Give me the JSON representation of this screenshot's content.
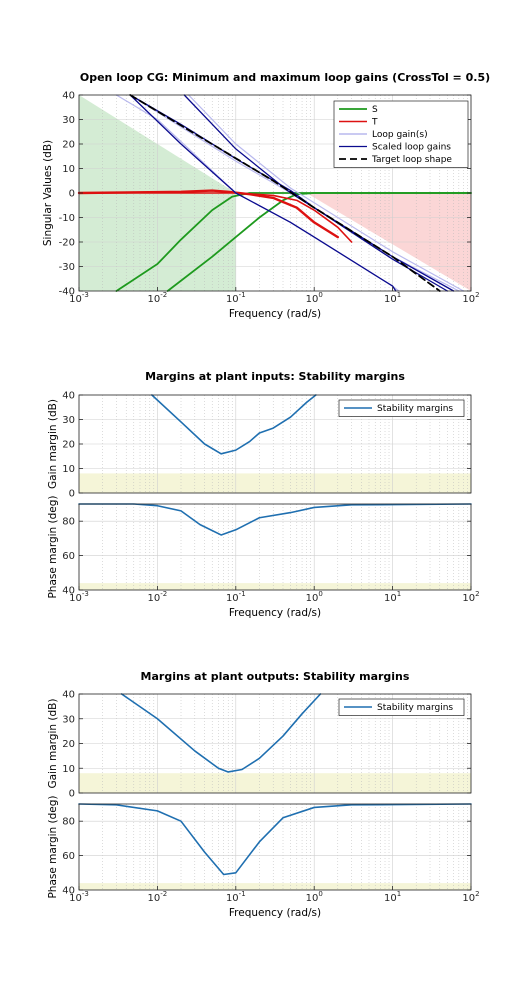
{
  "chart_data": [
    {
      "type": "line",
      "title": "Open loop CG: Minimum and maximum loop gains (CrossTol = 0.5)",
      "xlabel": "Frequency (rad/s)",
      "ylabel": "Singular Values (dB)",
      "xscale": "log",
      "xlim": [
        0.001,
        100
      ],
      "ylim": [
        -40,
        40
      ],
      "x_tick_labels": [
        {
          "base": "10",
          "exp": "-3"
        },
        {
          "base": "10",
          "exp": "-2"
        },
        {
          "base": "10",
          "exp": "-1"
        },
        {
          "base": "10",
          "exp": "0"
        },
        {
          "base": "10",
          "exp": "1"
        },
        {
          "base": "10",
          "exp": "2"
        }
      ],
      "y_ticks": [
        -40,
        -30,
        -20,
        -10,
        0,
        10,
        20,
        30,
        40
      ],
      "grid": true,
      "legend": {
        "placement": "top-right",
        "entries": [
          "S",
          "T",
          "Loop gain(s)",
          "Scaled loop gains",
          "Target loop shape"
        ]
      },
      "shaded_regions": [
        {
          "name": "low-frequency gain bound",
          "color": "#d4ecd4",
          "points": [
            [
              0.001,
              40
            ],
            [
              0.1,
              0
            ],
            [
              0.1,
              -40
            ],
            [
              0.001,
              -40
            ]
          ]
        },
        {
          "name": "high-frequency gain bound",
          "color": "#fbd6d6",
          "points": [
            [
              0.8,
              0
            ],
            [
              100,
              0
            ],
            [
              100,
              -40
            ]
          ]
        }
      ],
      "series": [
        {
          "name": "S",
          "color": "#1e9a1e",
          "width": 1.8,
          "dash": "",
          "points": [
            [
              0.003,
              -40
            ],
            [
              0.01,
              -29
            ],
            [
              0.02,
              -19
            ],
            [
              0.05,
              -7
            ],
            [
              0.09,
              -1.5
            ],
            [
              0.15,
              0
            ],
            [
              1,
              0
            ],
            [
              100,
              0
            ]
          ]
        },
        {
          "name": "S",
          "color": "#1e9a1e",
          "width": 1.8,
          "dash": "",
          "points": [
            [
              0.0135,
              -40
            ],
            [
              0.05,
              -26
            ],
            [
              0.1,
              -18
            ],
            [
              0.2,
              -10
            ],
            [
              0.4,
              -3
            ],
            [
              0.6,
              -0.5
            ],
            [
              1,
              0
            ],
            [
              2.5,
              0
            ],
            [
              100,
              0
            ]
          ]
        },
        {
          "name": "T",
          "color": "#dd1111",
          "width": 2.4,
          "dash": "",
          "points": [
            [
              0.001,
              0
            ],
            [
              0.02,
              0.5
            ],
            [
              0.05,
              1
            ],
            [
              0.08,
              0.5
            ],
            [
              0.15,
              -0.5
            ],
            [
              0.3,
              -2
            ],
            [
              0.6,
              -6
            ],
            [
              1,
              -12
            ],
            [
              2,
              -18
            ]
          ]
        },
        {
          "name": "T",
          "color": "#dd1111",
          "width": 1.6,
          "dash": "",
          "points": [
            [
              0.001,
              0
            ],
            [
              0.1,
              0
            ],
            [
              0.3,
              -1
            ],
            [
              0.6,
              -3
            ],
            [
              1,
              -7
            ],
            [
              2,
              -14
            ],
            [
              3,
              -20
            ]
          ]
        },
        {
          "name": "Loop gain(s)",
          "color": "#b8b8ee",
          "width": 1.2,
          "dash": "",
          "points": [
            [
              0.0045,
              40
            ],
            [
              0.02,
              27
            ],
            [
              0.1,
              13
            ],
            [
              0.5,
              0
            ],
            [
              1,
              -6
            ],
            [
              10,
              -26
            ],
            [
              70,
              -40
            ]
          ]
        },
        {
          "name": "Loop gain(s)",
          "color": "#b8b8ee",
          "width": 1.2,
          "dash": "",
          "points": [
            [
              0.025,
              40
            ],
            [
              0.1,
              20
            ],
            [
              0.5,
              2
            ],
            [
              1,
              -4
            ],
            [
              10,
              -24
            ],
            [
              80,
              -40
            ]
          ]
        },
        {
          "name": "Loop gain(s)",
          "color": "#b8b8ee",
          "width": 1.2,
          "dash": "",
          "points": [
            [
              0.003,
              40
            ],
            [
              0.01,
              30
            ],
            [
              0.1,
              0
            ],
            [
              0.5,
              -12
            ],
            [
              1,
              -18
            ],
            [
              10,
              -38
            ],
            [
              12,
              -40
            ]
          ]
        },
        {
          "name": "Scaled loop gains",
          "color": "#0b0b8e",
          "width": 1.3,
          "dash": "",
          "points": [
            [
              0.0045,
              40
            ],
            [
              0.02,
              28
            ],
            [
              0.1,
              14
            ],
            [
              0.5,
              1
            ],
            [
              1,
              -6
            ],
            [
              10,
              -26
            ],
            [
              60,
              -40
            ]
          ]
        },
        {
          "name": "Scaled loop gains",
          "color": "#0b0b8e",
          "width": 1.3,
          "dash": "",
          "points": [
            [
              0.022,
              40
            ],
            [
              0.1,
              18
            ],
            [
              0.5,
              0
            ],
            [
              1,
              -6
            ],
            [
              10,
              -27
            ],
            [
              50,
              -40
            ]
          ]
        },
        {
          "name": "Scaled loop gains",
          "color": "#0b0b8e",
          "width": 1.3,
          "dash": "",
          "points": [
            [
              0.0045,
              40
            ],
            [
              0.02,
              20
            ],
            [
              0.1,
              0
            ],
            [
              0.5,
              -12
            ],
            [
              1,
              -18
            ],
            [
              10,
              -38
            ],
            [
              11,
              -40
            ]
          ]
        },
        {
          "name": "Target loop shape",
          "color": "#000000",
          "width": 1.8,
          "dash": "7,4",
          "points": [
            [
              0.0045,
              40
            ],
            [
              0.3,
              5
            ],
            [
              1,
              -6
            ],
            [
              10,
              -26
            ],
            [
              40,
              -40
            ]
          ]
        }
      ]
    },
    {
      "type": "line",
      "title": "Margins at plant inputs: Stability margins",
      "xlabel": "Frequency  (rad/s)",
      "xscale": "log",
      "xlim": [
        0.001,
        100
      ],
      "x_tick_labels": [
        {
          "base": "10",
          "exp": "-3"
        },
        {
          "base": "10",
          "exp": "-2"
        },
        {
          "base": "10",
          "exp": "-1"
        },
        {
          "base": "10",
          "exp": "0"
        },
        {
          "base": "10",
          "exp": "1"
        },
        {
          "base": "10",
          "exp": "2"
        }
      ],
      "legend": {
        "placement": "top-right",
        "entries": [
          "Stability margins"
        ]
      },
      "grid": true,
      "subplots": [
        {
          "ylabel": "Gain margin (dB)",
          "ylim": [
            0,
            40
          ],
          "y_ticks": [
            0,
            10,
            20,
            30,
            40
          ],
          "band": {
            "from": 0,
            "to": 8,
            "color": "#f5f5d8"
          },
          "series": [
            {
              "name": "Stability margins",
              "color": "#1f6fb0",
              "points": [
                [
                  0.0085,
                  40
                ],
                [
                  0.02,
                  29
                ],
                [
                  0.04,
                  20
                ],
                [
                  0.065,
                  16
                ],
                [
                  0.1,
                  17.5
                ],
                [
                  0.15,
                  21
                ],
                [
                  0.2,
                  24.5
                ],
                [
                  0.3,
                  26.5
                ],
                [
                  0.5,
                  31
                ],
                [
                  0.8,
                  37
                ],
                [
                  1.05,
                  40
                ]
              ]
            }
          ]
        },
        {
          "ylabel": "Phase margin (deg)",
          "ylim": [
            40,
            90
          ],
          "y_ticks": [
            40,
            60,
            80
          ],
          "band": {
            "from": 40,
            "to": 44,
            "color": "#f5f5d8"
          },
          "series": [
            {
              "name": "Stability margins",
              "color": "#1f6fb0",
              "points": [
                [
                  0.001,
                  90
                ],
                [
                  0.005,
                  90
                ],
                [
                  0.01,
                  89
                ],
                [
                  0.02,
                  86
                ],
                [
                  0.035,
                  78
                ],
                [
                  0.065,
                  72
                ],
                [
                  0.1,
                  75
                ],
                [
                  0.2,
                  82
                ],
                [
                  0.5,
                  85
                ],
                [
                  1,
                  88
                ],
                [
                  3,
                  89.5
                ],
                [
                  100,
                  90
                ]
              ]
            }
          ]
        }
      ]
    },
    {
      "type": "line",
      "title": "Margins at plant outputs: Stability margins",
      "xlabel": "Frequency  (rad/s)",
      "xscale": "log",
      "xlim": [
        0.001,
        100
      ],
      "x_tick_labels": [
        {
          "base": "10",
          "exp": "-3"
        },
        {
          "base": "10",
          "exp": "-2"
        },
        {
          "base": "10",
          "exp": "-1"
        },
        {
          "base": "10",
          "exp": "0"
        },
        {
          "base": "10",
          "exp": "1"
        },
        {
          "base": "10",
          "exp": "2"
        }
      ],
      "legend": {
        "placement": "top-right",
        "entries": [
          "Stability margins"
        ]
      },
      "grid": true,
      "subplots": [
        {
          "ylabel": "Gain margin (dB)",
          "ylim": [
            0,
            40
          ],
          "y_ticks": [
            0,
            10,
            20,
            30,
            40
          ],
          "band": {
            "from": 0,
            "to": 8,
            "color": "#f5f5d8"
          },
          "series": [
            {
              "name": "Stability margins",
              "color": "#1f6fb0",
              "points": [
                [
                  0.0035,
                  40
                ],
                [
                  0.01,
                  30
                ],
                [
                  0.03,
                  17
                ],
                [
                  0.06,
                  10
                ],
                [
                  0.08,
                  8.5
                ],
                [
                  0.12,
                  9.5
                ],
                [
                  0.2,
                  14
                ],
                [
                  0.4,
                  23
                ],
                [
                  0.7,
                  32
                ],
                [
                  1.2,
                  40
                ]
              ]
            }
          ]
        },
        {
          "ylabel": "Phase margin (deg)",
          "ylim": [
            40,
            90
          ],
          "y_ticks": [
            40,
            60,
            80
          ],
          "band": {
            "from": 40,
            "to": 44,
            "color": "#f5f5d8"
          },
          "series": [
            {
              "name": "Stability margins",
              "color": "#1f6fb0",
              "points": [
                [
                  0.001,
                  90
                ],
                [
                  0.003,
                  89.5
                ],
                [
                  0.01,
                  86
                ],
                [
                  0.02,
                  80
                ],
                [
                  0.04,
                  62
                ],
                [
                  0.07,
                  49
                ],
                [
                  0.1,
                  50
                ],
                [
                  0.2,
                  68
                ],
                [
                  0.4,
                  82
                ],
                [
                  1,
                  88
                ],
                [
                  3,
                  89.5
                ],
                [
                  100,
                  90
                ]
              ]
            }
          ]
        }
      ]
    }
  ]
}
